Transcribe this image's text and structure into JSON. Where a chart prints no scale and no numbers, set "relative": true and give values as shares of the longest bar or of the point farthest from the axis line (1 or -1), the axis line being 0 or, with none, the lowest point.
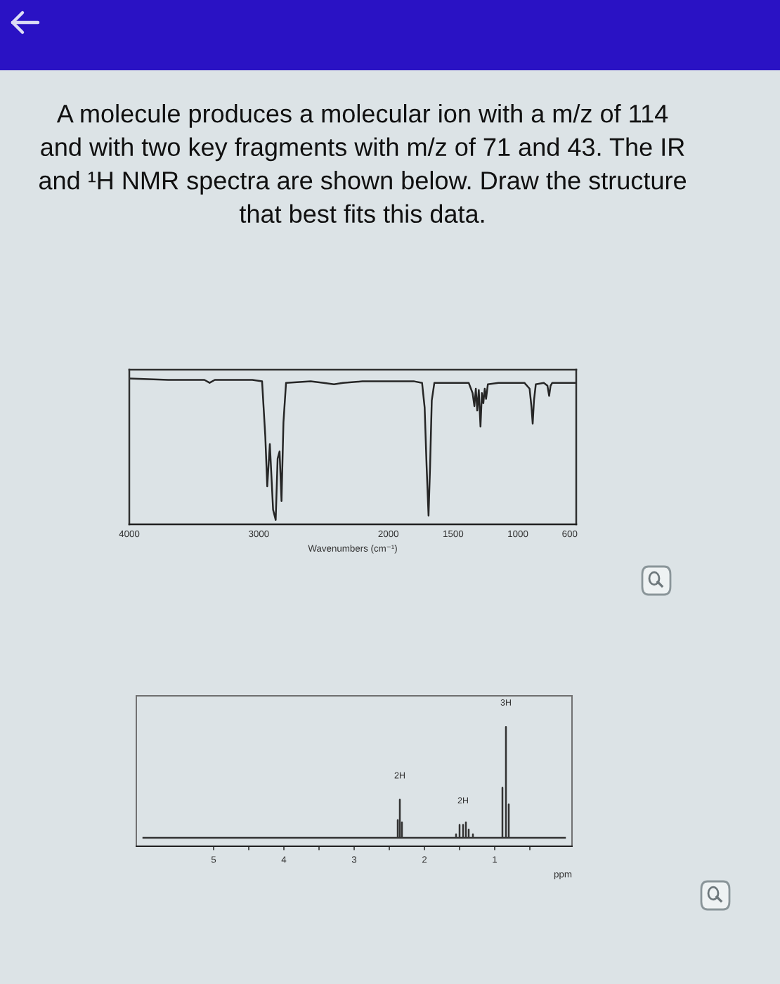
{
  "chart_data": [
    {
      "type": "line",
      "title": "A molecule produces a molecular ion with a m/z of 114\nand with two key fragments with m/z of 71 and 43. The IR\nand ¹H NMR spectra are shown below. Draw the structure\nthat best fits this data.",
      "xlabel": "Wavenumbers (cm⁻¹)",
      "relative": true,
      "xlim": [
        4000,
        550
      ],
      "xticks": [
        4000,
        3000,
        2000,
        1500,
        1000,
        600
      ],
      "series": [
        {
          "color": "#262626",
          "x": [
            4000,
            3700,
            3420,
            3380,
            3340,
            3050,
            2975,
            2950,
            2935,
            2915,
            2890,
            2870,
            2855,
            2840,
            2825,
            2810,
            2790,
            2600,
            2500,
            2420,
            2350,
            2200,
            2000,
            1800,
            1740,
            1720,
            1705,
            1690,
            1678,
            1665,
            1645,
            1500,
            1380,
            1350,
            1336,
            1325,
            1314,
            1302,
            1289,
            1278,
            1267,
            1256,
            1246,
            1232,
            1150,
            950,
            910,
            895,
            886,
            876,
            862,
            800,
            772,
            759,
            748,
            735,
            600,
            550
          ],
          "values": [
            1.0,
            0.99,
            0.99,
            0.97,
            0.99,
            0.99,
            0.98,
            0.6,
            0.26,
            0.55,
            0.1,
            0.03,
            0.45,
            0.5,
            0.16,
            0.7,
            0.97,
            0.98,
            0.97,
            0.96,
            0.97,
            0.98,
            0.98,
            0.98,
            0.97,
            0.8,
            0.4,
            0.06,
            0.4,
            0.85,
            0.97,
            0.97,
            0.97,
            0.9,
            0.81,
            0.93,
            0.78,
            0.92,
            0.67,
            0.9,
            0.83,
            0.93,
            0.86,
            0.96,
            0.97,
            0.97,
            0.93,
            0.8,
            0.69,
            0.85,
            0.96,
            0.97,
            0.95,
            0.88,
            0.95,
            0.97,
            0.97,
            0.97
          ]
        }
      ]
    },
    {
      "type": "line",
      "xlabel": "ppm",
      "relative": true,
      "xlim": [
        6.1,
        -0.1
      ],
      "xticks": [
        5,
        {
          "value": 4.5,
          "label": null
        },
        4,
        {
          "value": 3.5,
          "label": null
        },
        3,
        {
          "value": 2.5,
          "label": null
        },
        2,
        {
          "value": 1.5,
          "label": null
        },
        1,
        {
          "value": 0.5,
          "label": null
        }
      ],
      "annotations": [
        {
          "text": "2H",
          "x": 2.35,
          "y": 0.39
        },
        {
          "text": "2H",
          "x": 1.45,
          "y": 0.18
        },
        {
          "text": "3H",
          "x": 0.84,
          "y": 1.0
        }
      ],
      "series": [
        {
          "color": "#333333",
          "x": [
            6.0,
            2.38,
            2.38,
            2.38,
            2.35,
            2.35,
            2.35,
            2.32,
            2.32,
            2.32,
            1.55,
            1.55,
            1.55,
            1.5,
            1.5,
            1.5,
            1.45,
            1.45,
            1.45,
            1.41,
            1.41,
            1.41,
            1.37,
            1.37,
            1.37,
            1.31,
            1.31,
            1.31,
            0.89,
            0.89,
            0.89,
            0.84,
            0.84,
            0.84,
            0.8,
            0.8,
            0.8,
            0.0
          ],
          "values": [
            0.07,
            0.07,
            0.22,
            0.07,
            0.07,
            0.39,
            0.07,
            0.07,
            0.2,
            0.07,
            0.07,
            0.1,
            0.07,
            0.07,
            0.18,
            0.07,
            0.07,
            0.18,
            0.07,
            0.07,
            0.2,
            0.07,
            0.07,
            0.14,
            0.07,
            0.07,
            0.1,
            0.07,
            0.07,
            0.49,
            0.07,
            0.07,
            1.0,
            0.07,
            0.07,
            0.35,
            0.07,
            0.07
          ]
        }
      ]
    }
  ]
}
